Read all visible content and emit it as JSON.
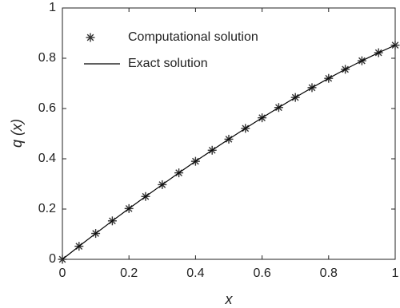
{
  "chart_data": {
    "type": "line",
    "x": [
      0,
      0.05,
      0.1,
      0.15,
      0.2,
      0.25,
      0.3,
      0.35,
      0.4,
      0.45,
      0.5,
      0.55,
      0.6,
      0.65,
      0.7,
      0.75,
      0.8,
      0.85,
      0.9,
      0.95,
      1
    ],
    "series": [
      {
        "name": "Computational solution",
        "color": "#333333",
        "marker": "asterisk",
        "values": [
          0,
          0.052,
          0.103,
          0.153,
          0.202,
          0.25,
          0.297,
          0.344,
          0.39,
          0.434,
          0.478,
          0.521,
          0.563,
          0.604,
          0.644,
          0.683,
          0.72,
          0.756,
          0.79,
          0.822,
          0.852
        ]
      },
      {
        "name": "Exact solution",
        "color": "#000000",
        "values": [
          0,
          0.052,
          0.103,
          0.153,
          0.202,
          0.25,
          0.297,
          0.344,
          0.39,
          0.434,
          0.478,
          0.521,
          0.563,
          0.604,
          0.644,
          0.683,
          0.72,
          0.756,
          0.79,
          0.822,
          0.852
        ]
      }
    ],
    "xlabel": "x",
    "ylabel": "q (x)",
    "xlim": [
      0,
      1
    ],
    "ylim": [
      0,
      1
    ],
    "xticks": [
      0,
      0.2,
      0.4,
      0.6,
      0.8,
      1
    ],
    "yticks": [
      0,
      0.2,
      0.4,
      0.6,
      0.8,
      1
    ],
    "legend": "upper left"
  }
}
